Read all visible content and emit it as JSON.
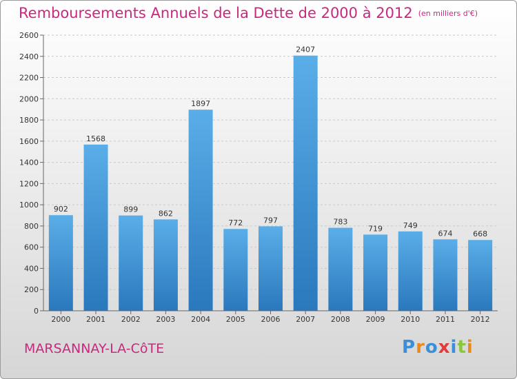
{
  "header": {
    "title": "Remboursements Annuels de la Dette de 2000 à 2012",
    "subtitle": "(en milliers d'€)"
  },
  "footer": {
    "city": "MARSANNAY-LA-CôTE",
    "logo_letters": [
      {
        "char": "P",
        "color": "#3a8fd8"
      },
      {
        "char": "r",
        "color": "#e88a1c"
      },
      {
        "char": "o",
        "color": "#3a8fd8"
      },
      {
        "char": "x",
        "color": "#e23b3b"
      },
      {
        "char": "i",
        "color": "#3a8fd8"
      },
      {
        "char": "t",
        "color": "#8cc63f"
      },
      {
        "char": "i",
        "color": "#e88a1c"
      }
    ]
  },
  "chart_data": {
    "type": "bar",
    "title": "Remboursements Annuels de la Dette de 2000 à 2012",
    "categories": [
      "2000",
      "2001",
      "2002",
      "2003",
      "2004",
      "2005",
      "2006",
      "2007",
      "2008",
      "2009",
      "2010",
      "2011",
      "2012"
    ],
    "values": [
      902,
      1568,
      899,
      862,
      1897,
      772,
      797,
      2407,
      783,
      719,
      749,
      674,
      668
    ],
    "ylim": [
      0,
      2600
    ],
    "yticks": [
      0,
      200,
      400,
      600,
      800,
      1000,
      1200,
      1400,
      1600,
      1800,
      2000,
      2200,
      2400,
      2600
    ],
    "grid": true,
    "bar_color_top": "#5aaee8",
    "bar_color_bottom": "#2a78bd"
  }
}
